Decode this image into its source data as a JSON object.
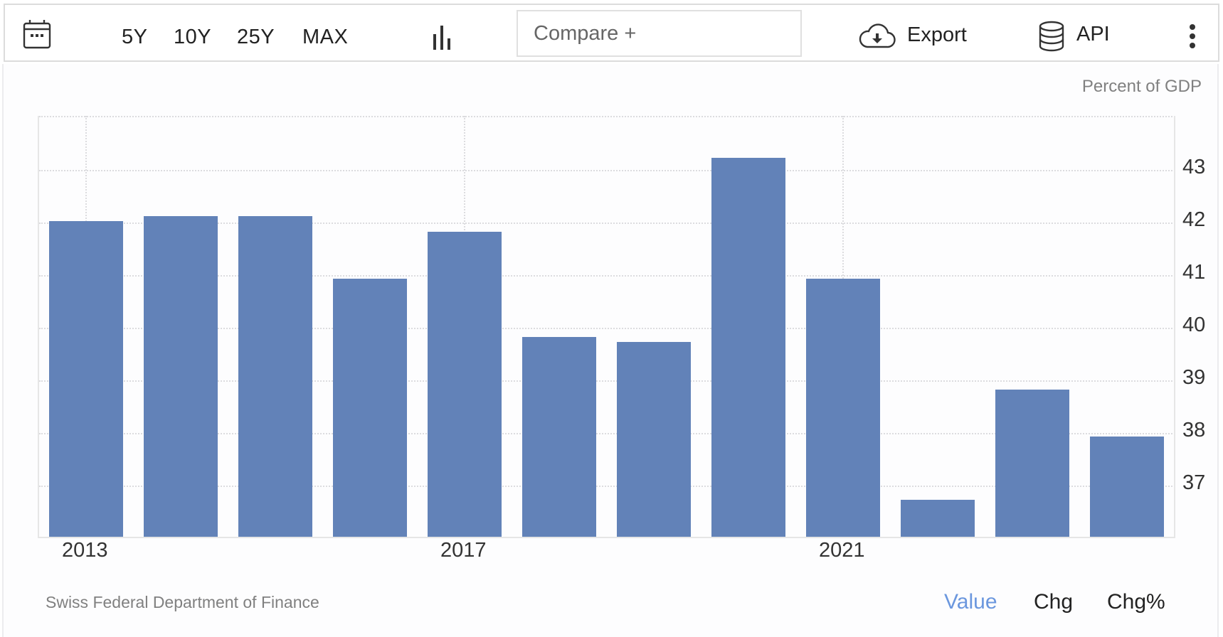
{
  "toolbar": {
    "calendar_icon": "calendar-icon",
    "ranges": [
      "5Y",
      "10Y",
      "25Y",
      "MAX"
    ],
    "chart_type_icon": "bar-chart-icon",
    "compare_placeholder": "Compare +",
    "export_label": "Export",
    "export_icon": "cloud-download-icon",
    "api_label": "API",
    "api_icon": "database-icon",
    "more_icon": "vertical-ellipsis-icon"
  },
  "chart": {
    "unit_label": "Percent of GDP",
    "bar_color": "#6282b8",
    "y_ticks": [
      "43",
      "42",
      "41",
      "40",
      "39",
      "38",
      "37"
    ],
    "x_ticks": [
      "2013",
      "2017",
      "2021"
    ]
  },
  "footer": {
    "source": "Swiss Federal Department of Finance",
    "modes": [
      "Value",
      "Chg",
      "Chg%"
    ],
    "active_mode": "Value",
    "active_color": "#6b97de"
  },
  "chart_data": {
    "type": "bar",
    "title": "",
    "xlabel": "",
    "ylabel": "Percent of GDP",
    "categories": [
      "2013",
      "2014",
      "2015",
      "2016",
      "2017",
      "2018",
      "2019",
      "2020",
      "2021",
      "2022",
      "2023",
      "2024"
    ],
    "values": [
      42.0,
      42.1,
      42.1,
      40.9,
      41.8,
      39.8,
      39.7,
      43.2,
      40.9,
      36.7,
      38.8,
      37.9
    ],
    "ylim": [
      36,
      44
    ],
    "y_ticks": [
      37,
      38,
      39,
      40,
      41,
      42,
      43
    ],
    "x_tick_labels": [
      "2013",
      "2017",
      "2021"
    ],
    "grid": true,
    "y_axis_position": "right",
    "legend": null,
    "source": "Swiss Federal Department of Finance"
  }
}
